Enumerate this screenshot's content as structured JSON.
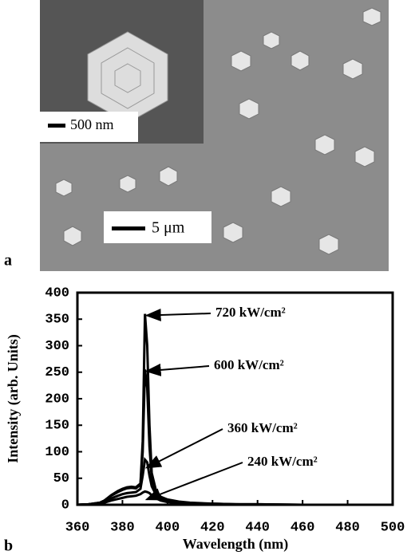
{
  "figure": {
    "panel_a": "a",
    "panel_b": "b",
    "inset_scale": "500 nm",
    "main_scale": "5 μm"
  },
  "chart_data": {
    "type": "line",
    "x_label": "Wavelength (nm)",
    "y_label": "Intensity (arb. Units)",
    "x": [
      360,
      365,
      370,
      372,
      375,
      378,
      380,
      382,
      384,
      386,
      388,
      389,
      390,
      391,
      392,
      393,
      395,
      397,
      400,
      405,
      410,
      415,
      420,
      430,
      440,
      460,
      480,
      500
    ],
    "series": [
      {
        "name": "720 kW/cm²",
        "color": "#000000",
        "values": [
          0,
          1,
          4,
          8,
          18,
          26,
          30,
          33,
          34,
          33,
          40,
          120,
          360,
          300,
          150,
          60,
          25,
          15,
          10,
          6,
          4,
          3,
          2,
          1,
          1,
          0,
          0,
          0
        ]
      },
      {
        "name": "600 kW/cm²",
        "color": "#000000",
        "values": [
          0,
          1,
          4,
          8,
          17,
          24,
          28,
          31,
          32,
          31,
          38,
          100,
          255,
          220,
          110,
          50,
          22,
          13,
          9,
          5,
          3,
          2,
          2,
          1,
          1,
          0,
          0,
          0
        ]
      },
      {
        "name": "360 kW/cm²",
        "color": "#000000",
        "values": [
          0,
          1,
          3,
          6,
          12,
          17,
          20,
          22,
          23,
          24,
          30,
          55,
          85,
          80,
          55,
          35,
          18,
          10,
          7,
          4,
          3,
          2,
          1,
          1,
          0,
          0,
          0,
          0
        ]
      },
      {
        "name": "240 kW/cm²",
        "color": "#000000",
        "values": [
          0,
          1,
          2,
          4,
          8,
          11,
          13,
          15,
          16,
          17,
          20,
          23,
          25,
          24,
          22,
          18,
          12,
          8,
          5,
          3,
          2,
          1,
          1,
          0,
          0,
          0,
          0,
          0
        ]
      }
    ],
    "xlim": [
      360,
      500
    ],
    "xticks": [
      360,
      380,
      400,
      420,
      440,
      460,
      480,
      500
    ],
    "ylim": [
      0,
      400
    ],
    "yticks": [
      0,
      50,
      100,
      150,
      200,
      250,
      300,
      350,
      400
    ]
  }
}
